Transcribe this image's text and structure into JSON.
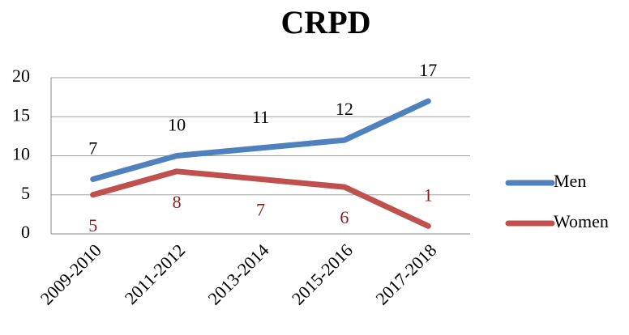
{
  "chart_data": {
    "type": "line",
    "title": "CRPD",
    "categories": [
      "2009-2010",
      "2011-2012",
      "2013-2014",
      "2015-2016",
      "2017-2018"
    ],
    "series": [
      {
        "name": "Men",
        "color": "#4f81bd",
        "values": [
          7,
          10,
          11,
          12,
          17
        ]
      },
      {
        "name": "Women",
        "color": "#c0504d",
        "values": [
          5,
          8,
          7,
          6,
          1
        ]
      }
    ],
    "ylim": [
      0,
      20
    ],
    "yticks": [
      0,
      5,
      10,
      15,
      20
    ],
    "grid": true,
    "legend": "right"
  }
}
